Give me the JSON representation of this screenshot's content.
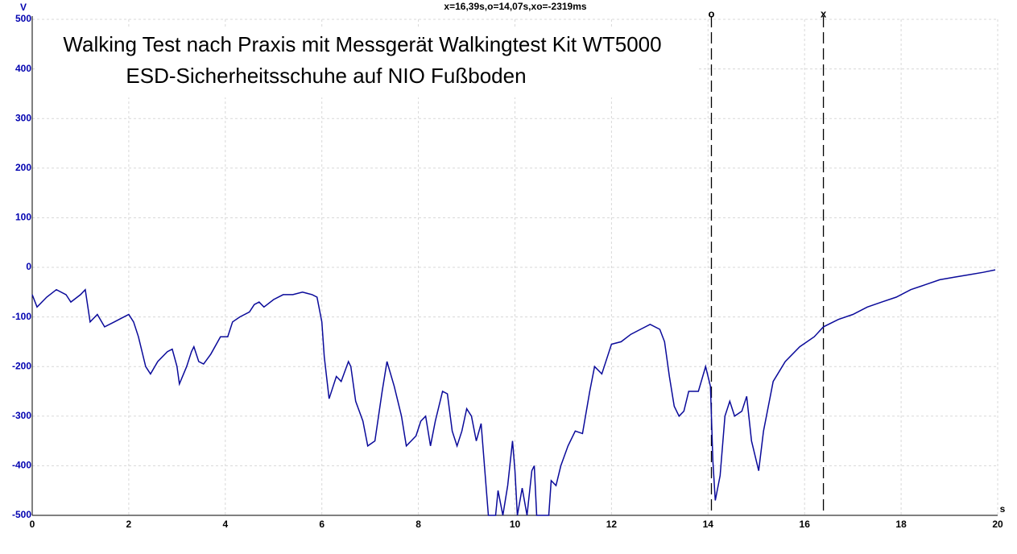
{
  "chart_data": {
    "type": "line",
    "title": "Walking Test nach Praxis mit Messgerät Walkingtest Kit WT5000",
    "subtitle": "ESD-Sicherheitsschuhe auf NIO Fußboden",
    "header": "x=16,39s,o=14,07s,xo=-2319ms",
    "xlabel": "s",
    "ylabel": "V",
    "xlim": [
      0,
      20
    ],
    "ylim": [
      -500,
      500
    ],
    "xticks": [
      0,
      2,
      4,
      6,
      8,
      10,
      12,
      14,
      16,
      18,
      20
    ],
    "yticks": [
      500,
      400,
      300,
      200,
      100,
      0,
      -100,
      -200,
      -300,
      -400,
      -500
    ],
    "grid": true,
    "color": "#0a0a9a",
    "cursors": [
      {
        "label": "o",
        "x": 14.07
      },
      {
        "label": "x",
        "x": 16.39
      }
    ],
    "x": [
      0,
      0.1,
      0.3,
      0.5,
      0.7,
      0.8,
      1.0,
      1.1,
      1.2,
      1.35,
      1.5,
      1.7,
      1.9,
      2.0,
      2.1,
      2.2,
      2.35,
      2.45,
      2.6,
      2.8,
      2.9,
      3.0,
      3.05,
      3.2,
      3.3,
      3.35,
      3.45,
      3.55,
      3.7,
      3.9,
      4.05,
      4.15,
      4.3,
      4.5,
      4.6,
      4.7,
      4.8,
      5.0,
      5.2,
      5.4,
      5.6,
      5.8,
      5.9,
      6.0,
      6.05,
      6.15,
      6.3,
      6.4,
      6.55,
      6.6,
      6.7,
      6.85,
      6.95,
      7.1,
      7.25,
      7.35,
      7.5,
      7.65,
      7.75,
      7.85,
      7.95,
      8.05,
      8.15,
      8.25,
      8.35,
      8.5,
      8.6,
      8.7,
      8.8,
      8.9,
      9.0,
      9.1,
      9.2,
      9.3,
      9.45,
      9.6,
      9.65,
      9.75,
      9.85,
      9.95,
      10.0,
      10.05,
      10.15,
      10.25,
      10.35,
      10.4,
      10.45,
      10.7,
      10.75,
      10.85,
      10.95,
      11.1,
      11.25,
      11.4,
      11.55,
      11.65,
      11.8,
      11.95,
      12.0,
      12.2,
      12.4,
      12.6,
      12.8,
      13.0,
      13.1,
      13.2,
      13.3,
      13.4,
      13.5,
      13.6,
      13.8,
      13.95,
      14.05,
      14.1,
      14.15,
      14.25,
      14.35,
      14.45,
      14.55,
      14.7,
      14.8,
      14.9,
      15.05,
      15.15,
      15.35,
      15.6,
      15.9,
      16.2,
      16.39,
      16.7,
      17.0,
      17.3,
      17.6,
      17.9,
      18.2,
      18.5,
      18.8,
      19.1,
      19.4,
      19.7,
      19.95
    ],
    "values": [
      -55,
      -80,
      -60,
      -45,
      -55,
      -70,
      -55,
      -45,
      -110,
      -95,
      -120,
      -110,
      -100,
      -95,
      -110,
      -140,
      -200,
      -215,
      -190,
      -170,
      -165,
      -200,
      -235,
      -200,
      -170,
      -160,
      -190,
      -195,
      -175,
      -140,
      -140,
      -110,
      -100,
      -90,
      -75,
      -70,
      -80,
      -65,
      -55,
      -55,
      -50,
      -55,
      -60,
      -110,
      -180,
      -265,
      -220,
      -230,
      -190,
      -200,
      -270,
      -310,
      -360,
      -350,
      -250,
      -190,
      -240,
      -300,
      -360,
      -350,
      -340,
      -310,
      -300,
      -360,
      -310,
      -250,
      -255,
      -330,
      -360,
      -330,
      -285,
      -300,
      -350,
      -315,
      -500,
      -500,
      -450,
      -500,
      -440,
      -350,
      -410,
      -500,
      -445,
      -500,
      -410,
      -400,
      -500,
      -500,
      -430,
      -440,
      -400,
      -360,
      -330,
      -335,
      -250,
      -200,
      -215,
      -170,
      -155,
      -150,
      -135,
      -125,
      -115,
      -125,
      -150,
      -220,
      -280,
      -300,
      -290,
      -250,
      -250,
      -200,
      -240,
      -390,
      -470,
      -420,
      -300,
      -270,
      -300,
      -290,
      -260,
      -350,
      -410,
      -330,
      -230,
      -190,
      -160,
      -140,
      -120,
      -105,
      -95,
      -80,
      -70,
      -60,
      -45,
      -35,
      -25,
      -20,
      -15,
      -10,
      -5
    ]
  }
}
